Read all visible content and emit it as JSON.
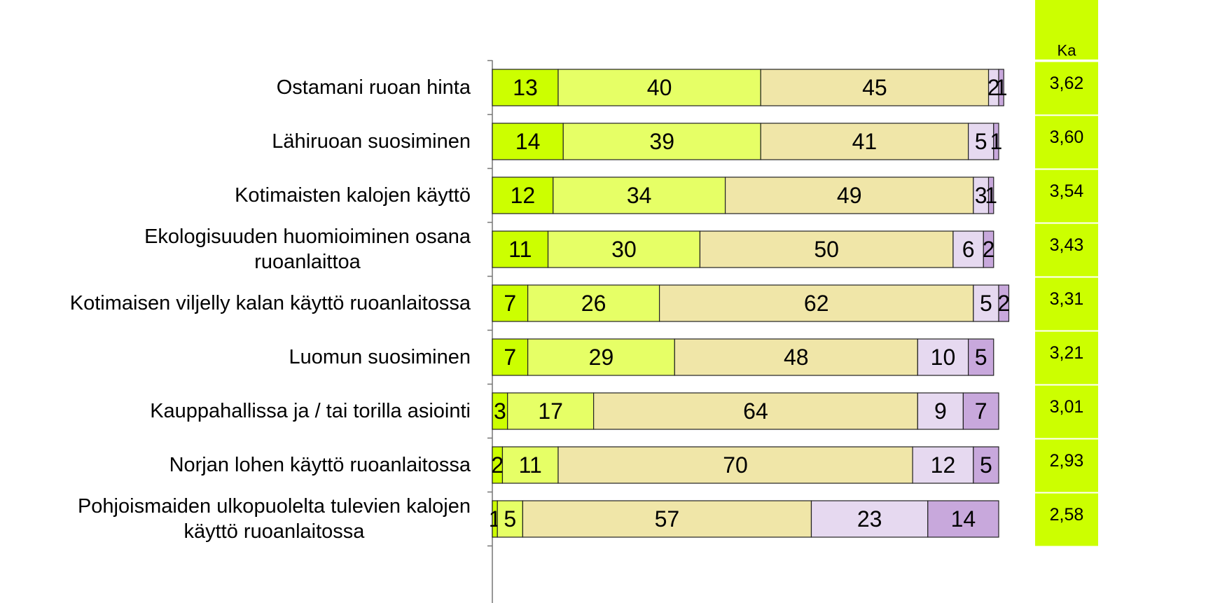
{
  "chart_data": {
    "type": "stacked-bar",
    "categories": [
      "Ostamani ruoan hinta",
      "Lähiruoan suosiminen",
      "Kotimaisten kalojen käyttö",
      "Ekologisuuden huomioiminen osana\nruoanlaittoa",
      "Kotimaisen viljelly kalan käyttö ruoanlaitossa",
      "Luomun suosiminen",
      "Kauppahallissa ja / tai torilla asiointi",
      "Norjan lohen käyttö ruoanlaitossa",
      "Pohjoismaiden ulkopuolelta tulevien kalojen\nkäyttö ruoanlaitossa"
    ],
    "series": [
      {
        "color": "#ccff00",
        "values": [
          13,
          14,
          12,
          11,
          7,
          7,
          3,
          2,
          1
        ]
      },
      {
        "color": "#e6ff66",
        "values": [
          40,
          39,
          34,
          30,
          26,
          29,
          17,
          11,
          5
        ]
      },
      {
        "color": "#f0e6a8",
        "values": [
          45,
          41,
          49,
          50,
          62,
          48,
          64,
          70,
          57
        ]
      },
      {
        "color": "#e6d9f0",
        "values": [
          2,
          5,
          3,
          6,
          5,
          10,
          9,
          12,
          23
        ]
      },
      {
        "color": "#c8a8dc",
        "values": [
          1,
          1,
          1,
          2,
          2,
          5,
          7,
          5,
          14
        ]
      }
    ],
    "side_table": {
      "header": "Ka",
      "color": "#ccff00",
      "values": [
        3.62,
        3.6,
        3.54,
        3.43,
        3.31,
        3.21,
        3.01,
        2.93,
        2.58
      ],
      "value_labels": [
        "3,62",
        "3,60",
        "3,54",
        "3,43",
        "3,31",
        "3,21",
        "3,01",
        "2,93",
        "2,58"
      ]
    }
  }
}
